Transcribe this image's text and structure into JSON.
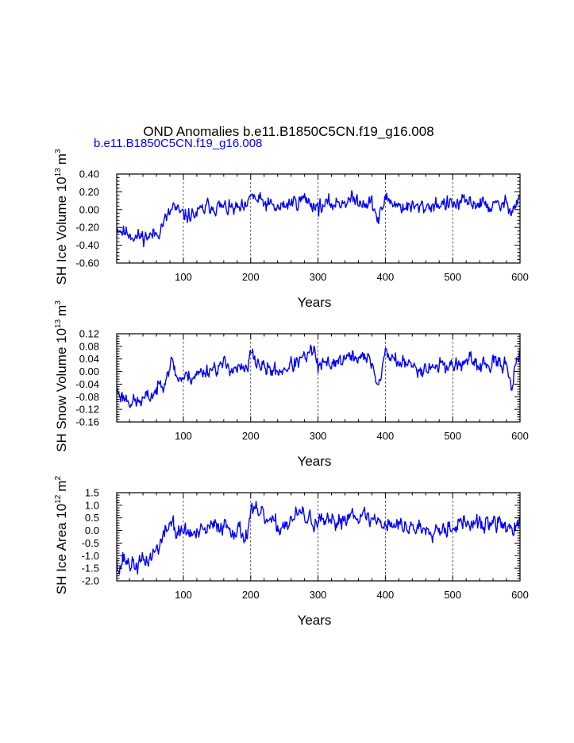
{
  "title": "OND Anomalies b.e11.B1850C5CN.f19_g16.008",
  "subtitle": "b.e11.B1850C5CN.f19_g16.008",
  "colors": {
    "series": "#0000ff",
    "subtitle": "#0000ff",
    "axis": "#000000",
    "grid": "#000000"
  },
  "chart_data": [
    {
      "type": "line",
      "ylabel": "SH Ice Volume 10^13 m^3",
      "ylabel_base": "SH Ice Volume 10",
      "ylabel_exp": "13",
      "ylabel_unit": "m",
      "ylabel_unit_exp": "3",
      "xlabel": "Years",
      "xlim": [
        1,
        600
      ],
      "ylim": [
        -0.6,
        0.4
      ],
      "x_ticks": [
        100,
        200,
        300,
        400,
        500,
        600
      ],
      "x_tick_labels": [
        "100",
        "200",
        "300",
        "400",
        "500",
        "600"
      ],
      "y_ticks": [
        -0.6,
        -0.4,
        -0.2,
        0.0,
        0.2,
        0.4
      ],
      "y_tick_labels": [
        "-0.60",
        "-0.40",
        "-0.20",
        "0.00",
        "0.20",
        "0.40"
      ],
      "x_gridlines": [
        100,
        200,
        300,
        400,
        500
      ],
      "series": [
        {
          "name": "SH Ice Volume",
          "noise": 0.05,
          "seed": 11,
          "anchors": [
            [
              1,
              -0.2
            ],
            [
              5,
              -0.21
            ],
            [
              10,
              -0.25
            ],
            [
              20,
              -0.26
            ],
            [
              30,
              -0.31
            ],
            [
              40,
              -0.3
            ],
            [
              50,
              -0.3
            ],
            [
              60,
              -0.27
            ],
            [
              70,
              -0.15
            ],
            [
              80,
              -0.05
            ],
            [
              85,
              0.05
            ],
            [
              90,
              -0.02
            ],
            [
              100,
              -0.07
            ],
            [
              120,
              -0.05
            ],
            [
              140,
              0.05
            ],
            [
              160,
              0.02
            ],
            [
              180,
              0.0
            ],
            [
              195,
              0.0
            ],
            [
              200,
              0.2
            ],
            [
              205,
              0.12
            ],
            [
              220,
              0.07
            ],
            [
              240,
              0.01
            ],
            [
              260,
              0.08
            ],
            [
              280,
              0.12
            ],
            [
              300,
              0.03
            ],
            [
              320,
              0.06
            ],
            [
              340,
              0.1
            ],
            [
              360,
              0.11
            ],
            [
              380,
              0.07
            ],
            [
              390,
              -0.13
            ],
            [
              395,
              0.0
            ],
            [
              400,
              0.14
            ],
            [
              420,
              0.04
            ],
            [
              450,
              0.02
            ],
            [
              480,
              0.07
            ],
            [
              500,
              0.05
            ],
            [
              520,
              0.08
            ],
            [
              540,
              0.07
            ],
            [
              560,
              0.03
            ],
            [
              580,
              0.06
            ],
            [
              590,
              0.02
            ],
            [
              600,
              0.15
            ]
          ]
        }
      ]
    },
    {
      "type": "line",
      "ylabel": "SH Snow Volume 10^13 m^3",
      "ylabel_base": "SH Snow Volume 10",
      "ylabel_exp": "13",
      "ylabel_unit": "m",
      "ylabel_unit_exp": "3",
      "xlabel": "Years",
      "xlim": [
        1,
        600
      ],
      "ylim": [
        -0.16,
        0.12
      ],
      "x_ticks": [
        100,
        200,
        300,
        400,
        500,
        600
      ],
      "x_tick_labels": [
        "100",
        "200",
        "300",
        "400",
        "500",
        "600"
      ],
      "y_ticks": [
        -0.16,
        -0.12,
        -0.08,
        -0.04,
        0.0,
        0.04,
        0.08,
        0.12
      ],
      "y_tick_labels": [
        "-0.16",
        "-0.12",
        "-0.08",
        "-0.04",
        "0.00",
        "0.04",
        "0.08",
        "0.12"
      ],
      "x_gridlines": [
        100,
        200,
        300,
        400,
        500
      ],
      "series": [
        {
          "name": "SH Snow Volume",
          "noise": 0.014,
          "seed": 23,
          "anchors": [
            [
              1,
              -0.06
            ],
            [
              10,
              -0.08
            ],
            [
              20,
              -0.09
            ],
            [
              30,
              -0.1
            ],
            [
              40,
              -0.09
            ],
            [
              50,
              -0.08
            ],
            [
              60,
              -0.06
            ],
            [
              70,
              -0.03
            ],
            [
              80,
              0.02
            ],
            [
              85,
              0.03
            ],
            [
              90,
              -0.02
            ],
            [
              100,
              -0.02
            ],
            [
              120,
              -0.01
            ],
            [
              140,
              0.01
            ],
            [
              160,
              0.02
            ],
            [
              180,
              0.01
            ],
            [
              195,
              0.0
            ],
            [
              200,
              0.06
            ],
            [
              205,
              0.04
            ],
            [
              220,
              0.01
            ],
            [
              240,
              0.0
            ],
            [
              260,
              0.02
            ],
            [
              280,
              0.04
            ],
            [
              295,
              0.07
            ],
            [
              300,
              0.01
            ],
            [
              320,
              0.03
            ],
            [
              340,
              0.04
            ],
            [
              360,
              0.05
            ],
            [
              380,
              0.03
            ],
            [
              390,
              -0.05
            ],
            [
              395,
              0.01
            ],
            [
              400,
              0.06
            ],
            [
              420,
              0.03
            ],
            [
              450,
              0.01
            ],
            [
              480,
              0.02
            ],
            [
              500,
              0.02
            ],
            [
              520,
              0.03
            ],
            [
              540,
              0.02
            ],
            [
              560,
              0.02
            ],
            [
              580,
              0.03
            ],
            [
              588,
              -0.05
            ],
            [
              593,
              0.02
            ],
            [
              600,
              0.05
            ]
          ]
        }
      ]
    },
    {
      "type": "line",
      "ylabel": "SH Ice Area 10^12 m^2",
      "ylabel_base": "SH Ice Area 10",
      "ylabel_exp": "12",
      "ylabel_unit": "m",
      "ylabel_unit_exp": "2",
      "xlabel": "Years",
      "xlim": [
        1,
        600
      ],
      "ylim": [
        -2.0,
        1.5
      ],
      "x_ticks": [
        100,
        200,
        300,
        400,
        500,
        600
      ],
      "x_tick_labels": [
        "100",
        "200",
        "300",
        "400",
        "500",
        "600"
      ],
      "y_ticks": [
        -2.0,
        -1.5,
        -1.0,
        -0.5,
        0.0,
        0.5,
        1.0,
        1.5
      ],
      "y_tick_labels": [
        "-2.0",
        "-1.5",
        "-1.0",
        "-0.5",
        "0.0",
        "0.5",
        "1.0",
        "1.5"
      ],
      "x_gridlines": [
        100,
        200,
        300,
        400,
        500
      ],
      "series": [
        {
          "name": "SH Ice Area",
          "noise": 0.2,
          "seed": 37,
          "anchors": [
            [
              1,
              -1.0
            ],
            [
              5,
              -1.6
            ],
            [
              10,
              -1.1
            ],
            [
              20,
              -1.3
            ],
            [
              30,
              -1.4
            ],
            [
              40,
              -1.25
            ],
            [
              50,
              -1.1
            ],
            [
              60,
              -0.75
            ],
            [
              70,
              -0.3
            ],
            [
              80,
              0.3
            ],
            [
              85,
              0.4
            ],
            [
              90,
              -0.2
            ],
            [
              100,
              0.0
            ],
            [
              120,
              -0.2
            ],
            [
              140,
              0.1
            ],
            [
              160,
              0.25
            ],
            [
              180,
              0.0
            ],
            [
              195,
              -0.2
            ],
            [
              200,
              0.9
            ],
            [
              205,
              0.7
            ],
            [
              220,
              0.5
            ],
            [
              240,
              0.1
            ],
            [
              260,
              0.4
            ],
            [
              275,
              0.7
            ],
            [
              280,
              0.5
            ],
            [
              300,
              0.3
            ],
            [
              320,
              0.25
            ],
            [
              340,
              0.5
            ],
            [
              355,
              0.8
            ],
            [
              360,
              0.6
            ],
            [
              380,
              0.45
            ],
            [
              400,
              0.3
            ],
            [
              420,
              0.2
            ],
            [
              450,
              0.1
            ],
            [
              480,
              0.1
            ],
            [
              500,
              0.2
            ],
            [
              520,
              0.3
            ],
            [
              540,
              0.2
            ],
            [
              560,
              0.3
            ],
            [
              580,
              0.2
            ],
            [
              590,
              0.0
            ],
            [
              600,
              0.2
            ]
          ]
        }
      ]
    }
  ]
}
